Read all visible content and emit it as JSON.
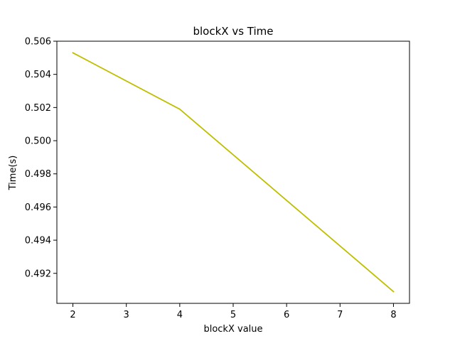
{
  "chart_data": {
    "type": "line",
    "title": "blockX vs Time",
    "xlabel": "blockX value",
    "ylabel": "Time(s)",
    "x": [
      2,
      4,
      8
    ],
    "series": [
      {
        "values": [
          0.5053,
          0.5019,
          0.4909
        ],
        "color": "#bfbf00"
      }
    ],
    "xlim": [
      1.7,
      8.3
    ],
    "ylim": [
      0.49019,
      0.506
    ],
    "x_ticks": [
      2,
      3,
      4,
      5,
      6,
      7,
      8
    ],
    "y_ticks": [
      0.492,
      0.494,
      0.496,
      0.498,
      0.5,
      0.502,
      0.504,
      0.506
    ],
    "x_tick_labels": [
      "2",
      "3",
      "4",
      "5",
      "6",
      "7",
      "8"
    ],
    "y_tick_labels": [
      "0.492",
      "0.494",
      "0.496",
      "0.498",
      "0.500",
      "0.502",
      "0.504",
      "0.506"
    ],
    "grid": false,
    "legend": "none"
  }
}
